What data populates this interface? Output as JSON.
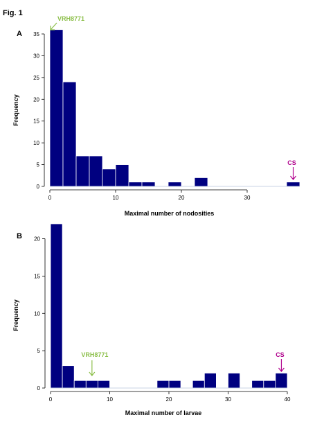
{
  "figure_label": "Fig. 1",
  "colors": {
    "bar": "#000080",
    "bar_edge": "#ffffff",
    "cs": "#b0008c",
    "vrh": "#8cbf4a"
  },
  "chart_data": [
    {
      "type": "bar",
      "panel": "A",
      "xlabel": "Maximal number of nodosities",
      "ylabel": "Frequency",
      "xlim": [
        0,
        38
      ],
      "ylim": [
        0,
        35
      ],
      "xticks": [
        0,
        10,
        20,
        30
      ],
      "yticks": [
        0,
        5,
        10,
        15,
        20,
        25,
        30,
        35
      ],
      "bin_width": 2,
      "bins": [
        {
          "start": 0,
          "end": 2,
          "value": 36
        },
        {
          "start": 2,
          "end": 4,
          "value": 24
        },
        {
          "start": 4,
          "end": 6,
          "value": 7
        },
        {
          "start": 6,
          "end": 8,
          "value": 7
        },
        {
          "start": 8,
          "end": 10,
          "value": 4
        },
        {
          "start": 10,
          "end": 12,
          "value": 5
        },
        {
          "start": 12,
          "end": 14,
          "value": 1
        },
        {
          "start": 14,
          "end": 16,
          "value": 1
        },
        {
          "start": 16,
          "end": 18,
          "value": 0
        },
        {
          "start": 18,
          "end": 20,
          "value": 1
        },
        {
          "start": 20,
          "end": 22,
          "value": 0
        },
        {
          "start": 22,
          "end": 24,
          "value": 2
        },
        {
          "start": 36,
          "end": 38,
          "value": 1
        }
      ],
      "annotations": [
        {
          "label": "VRH8771",
          "color_key": "vrh",
          "target_x": 0
        },
        {
          "label": "CS",
          "color_key": "cs",
          "target_x": 37
        }
      ]
    },
    {
      "type": "bar",
      "panel": "B",
      "xlabel": "Maximal number of larvae",
      "ylabel": "Frequency",
      "xlim": [
        0,
        40
      ],
      "ylim": [
        0,
        22
      ],
      "xticks": [
        0,
        10,
        20,
        30,
        40
      ],
      "yticks": [
        0,
        5,
        10,
        15,
        20
      ],
      "bin_width": 2,
      "bins": [
        {
          "start": 0,
          "end": 2,
          "value": 22
        },
        {
          "start": 2,
          "end": 4,
          "value": 3
        },
        {
          "start": 4,
          "end": 6,
          "value": 1
        },
        {
          "start": 6,
          "end": 8,
          "value": 1
        },
        {
          "start": 8,
          "end": 10,
          "value": 1
        },
        {
          "start": 18,
          "end": 20,
          "value": 1
        },
        {
          "start": 20,
          "end": 22,
          "value": 1
        },
        {
          "start": 24,
          "end": 26,
          "value": 1
        },
        {
          "start": 26,
          "end": 28,
          "value": 2
        },
        {
          "start": 30,
          "end": 32,
          "value": 2
        },
        {
          "start": 34,
          "end": 36,
          "value": 1
        },
        {
          "start": 36,
          "end": 38,
          "value": 1
        },
        {
          "start": 38,
          "end": 40,
          "value": 2
        }
      ],
      "annotations": [
        {
          "label": "VRH8771",
          "color_key": "vrh",
          "target_x": 7
        },
        {
          "label": "CS",
          "color_key": "cs",
          "target_x": 39
        }
      ]
    }
  ]
}
